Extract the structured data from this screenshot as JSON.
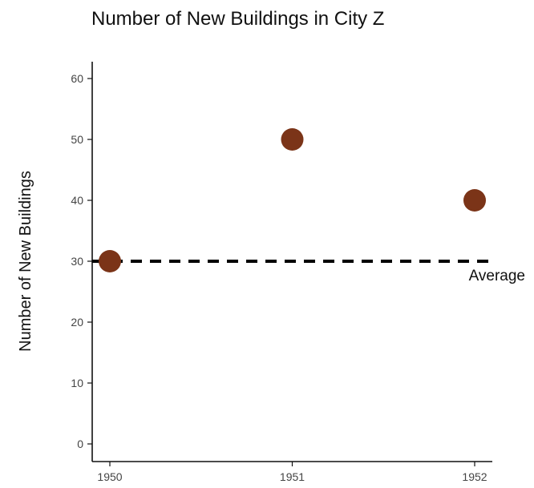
{
  "chart_data": {
    "type": "scatter",
    "title": "Number of New Buildings in City Z",
    "xlabel": "",
    "ylabel": "Number of New Buildings",
    "x": [
      "1950",
      "1951",
      "1952"
    ],
    "values": [
      30,
      50,
      40
    ],
    "ylim": [
      0,
      60
    ],
    "yticks": [
      0,
      10,
      20,
      30,
      40,
      50,
      60
    ],
    "reference_line": {
      "label": "Average",
      "value": 30,
      "style": "dashed"
    },
    "grid": false,
    "colors": {
      "point": "#7b3418",
      "reference_line": "#000000",
      "axis": "#111111"
    }
  }
}
